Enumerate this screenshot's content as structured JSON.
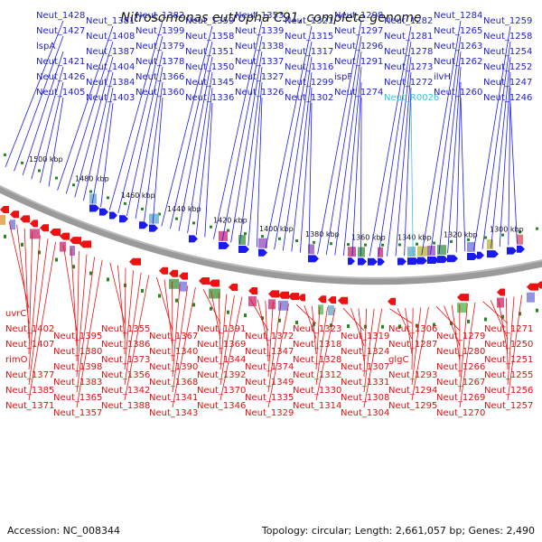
{
  "title": "Nitrosomonas eutropha C91, complete genome",
  "footer": {
    "accession": "Accession: NC_008344",
    "topology": "Topology: circular; Length: 2,661,057 bp; Genes: 2,490"
  },
  "kbp_ticks": [
    "1500 kbp",
    "1480 kbp",
    "1460 kbp",
    "1440 kbp",
    "1420 kbp",
    "1400 kbp",
    "1380 kbp",
    "1360 kbp",
    "1340 kbp",
    "1320 kbp",
    "1300 kbp"
  ],
  "top_labels": [
    "Neut_1428",
    "Neut_1427",
    "lspA",
    "Neut_1421",
    "Neut_1426",
    "Neut_1405",
    "Neut_1381",
    "Neut_1408",
    "Neut_1387",
    "Neut_1404",
    "Neut_1384",
    "Neut_1403",
    "Neut_1382",
    "Neut_1399",
    "Neut_1379",
    "Neut_1378",
    "Neut_1366",
    "Neut_1360",
    "Neut_1359",
    "Neut_1358",
    "Neut_1351",
    "Neut_1350",
    "Neut_1345",
    "Neut_1336",
    "Neut_1353",
    "Neut_1339",
    "Neut_1338",
    "Neut_1337",
    "Neut_1327",
    "Neut_1326",
    "Neut_1321",
    "Neut_1315",
    "Neut_1317",
    "Neut_1316",
    "Neut_1299",
    "Neut_1302",
    "Neut_1298",
    "Neut_1297",
    "Neut_1296",
    "Neut_1291",
    "ispF",
    "Neut_1274",
    "Neut_1282",
    "Neut_1281",
    "Neut_1278",
    "Neut_1273",
    "Neut_1272",
    "Neut_R0026",
    "Neut_1284",
    "Neut_1265",
    "Neut_1263",
    "Neut_1262",
    "ilvH",
    "Neut_1260",
    "Neut_1259",
    "Neut_1258",
    "Neut_1254",
    "Neut_1252",
    "Neut_1247",
    "Neut_1246"
  ],
  "bottom_labels": [
    "uvrC",
    "Neut_1402",
    "Neut_1407",
    "rimO",
    "Neut_1377",
    "Neut_1385",
    "Neut_1371",
    "Neut_1395",
    "Neut_1380",
    "Neut_1398",
    "Neut_1383",
    "Neut_1365",
    "Neut_1357",
    "Neut_1355",
    "Neut_1386",
    "Neut_1373",
    "Neut_1356",
    "Neut_1342",
    "Neut_1388",
    "Neut_1367",
    "Neut_1340",
    "Neut_1390",
    "Neut_1368",
    "Neut_1341",
    "Neut_1343",
    "Neut_1391",
    "Neut_1369",
    "Neut_1344",
    "Neut_1392",
    "Neut_1370",
    "Neut_1346",
    "Neut_1372",
    "Neut_1347",
    "Neut_1374",
    "Neut_1349",
    "Neut_1335",
    "Neut_1329",
    "Neut_1323",
    "Neut_1318",
    "Neut_1328",
    "Neut_1312",
    "Neut_1330",
    "Neut_1314",
    "Neut_1319",
    "Neut_1324",
    "Neut_1307",
    "Neut_1331",
    "Neut_1308",
    "Neut_1304",
    "Neut_1306",
    "Neut_1287",
    "glgC",
    "Neut_1293",
    "Neut_1294",
    "Neut_1295",
    "Neut_1279",
    "Neut_1280",
    "Neut_1266",
    "Neut_1267",
    "Neut_1269",
    "Neut_1270",
    "Neut_1271",
    "Neut_1250",
    "Neut_1251",
    "Neut_1255",
    "Neut_1256",
    "Neut_1257"
  ],
  "colors": {
    "forward": "#1a1aee",
    "reverse": "#ee1111",
    "backbone": "#888888",
    "tick": "#228822",
    "rrna": "#33c8e0"
  }
}
